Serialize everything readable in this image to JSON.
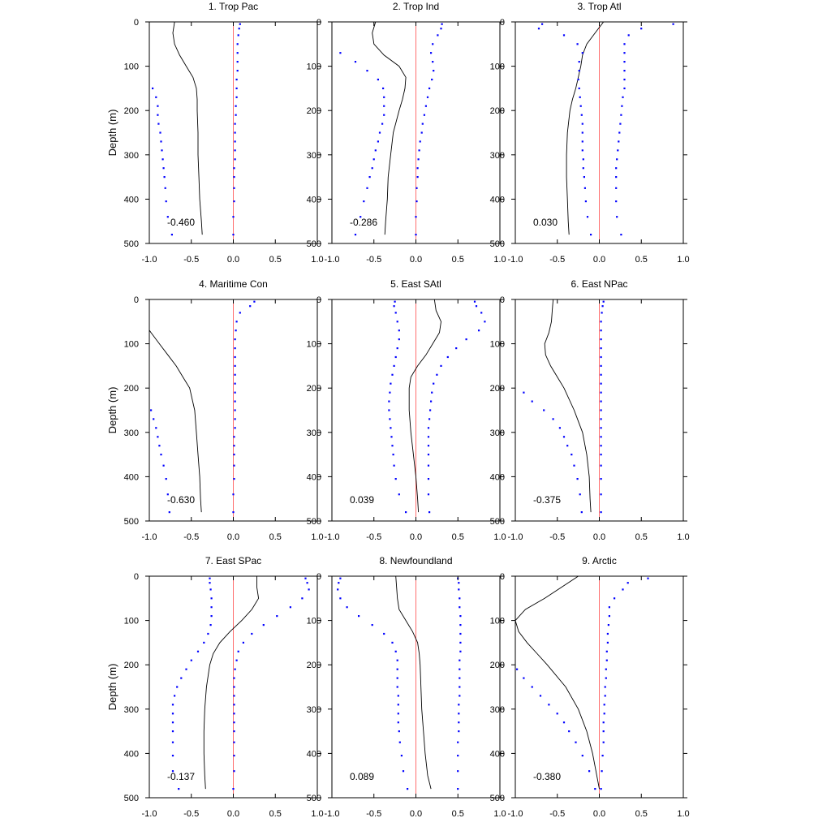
{
  "chart_data": {
    "type": "line",
    "layout": "3x3 panel grid",
    "ylabel": "Depth (m)",
    "xlim": [
      -1.0,
      1.0
    ],
    "ylim": [
      0,
      500
    ],
    "y_inverted": true,
    "xticks": [
      "-1.0",
      "-0.5",
      "0.0",
      "0.5",
      "1.0"
    ],
    "yticks": [
      "0",
      "100",
      "200",
      "300",
      "400",
      "500"
    ],
    "colors": {
      "line": "#000000",
      "zero_line": "#ff6e6e",
      "dots": "#0000ff"
    },
    "depths_line": [
      0,
      25,
      50,
      75,
      100,
      125,
      150,
      175,
      200,
      250,
      300,
      350,
      400,
      450,
      480
    ],
    "depths_dots": [
      5,
      15,
      30,
      50,
      70,
      90,
      110,
      130,
      150,
      170,
      190,
      210,
      230,
      250,
      270,
      290,
      310,
      330,
      350,
      375,
      405,
      440,
      480
    ],
    "panels": [
      {
        "title": "1. Trop Pac",
        "stat": "-0.460",
        "line": [
          -0.7,
          -0.72,
          -0.7,
          -0.64,
          -0.56,
          -0.48,
          -0.44,
          -0.43,
          -0.43,
          -0.42,
          -0.42,
          -0.41,
          -0.4,
          -0.38,
          -0.37
        ],
        "dots_lower": [
          -1.1,
          -1.1,
          -1.1,
          -1.1,
          -1.1,
          -1.1,
          -1.1,
          -1.02,
          -0.96,
          -0.92,
          -0.9,
          -0.9,
          -0.89,
          -0.87,
          -0.86,
          -0.85,
          -0.84,
          -0.83,
          -0.82,
          -0.81,
          -0.8,
          -0.78,
          -0.73
        ],
        "dots_upper": [
          0.08,
          0.07,
          0.06,
          0.05,
          0.05,
          0.05,
          0.05,
          0.04,
          0.04,
          0.04,
          0.03,
          0.03,
          0.02,
          0.02,
          0.02,
          0.02,
          0.02,
          0.01,
          0.01,
          0.01,
          0.01,
          0.0,
          0.0
        ]
      },
      {
        "title": "2. Trop Ind",
        "stat": "-0.286",
        "line": [
          -0.48,
          -0.52,
          -0.5,
          -0.38,
          -0.2,
          -0.12,
          -0.13,
          -0.16,
          -0.2,
          -0.27,
          -0.3,
          -0.33,
          -0.34,
          -0.36,
          -0.37
        ],
        "dots_lower": [
          -1.1,
          -1.1,
          -1.1,
          -1.1,
          -0.9,
          -0.72,
          -0.58,
          -0.45,
          -0.39,
          -0.38,
          -0.38,
          -0.38,
          -0.4,
          -0.43,
          -0.45,
          -0.48,
          -0.5,
          -0.52,
          -0.55,
          -0.58,
          -0.62,
          -0.66,
          -0.72
        ],
        "dots_upper": [
          0.31,
          0.3,
          0.26,
          0.2,
          0.18,
          0.2,
          0.21,
          0.19,
          0.16,
          0.14,
          0.12,
          0.1,
          0.08,
          0.07,
          0.05,
          0.04,
          0.03,
          0.02,
          0.02,
          0.01,
          0.01,
          0.0,
          0.0
        ]
      },
      {
        "title": "3. Trop Atl",
        "stat": "0.030",
        "line": [
          0.05,
          -0.05,
          -0.15,
          -0.2,
          -0.22,
          -0.25,
          -0.28,
          -0.32,
          -0.35,
          -0.38,
          -0.39,
          -0.39,
          -0.38,
          -0.37,
          -0.36
        ],
        "dots_lower": [
          -0.68,
          -0.72,
          -0.42,
          -0.26,
          -0.2,
          -0.24,
          -0.24,
          -0.25,
          -0.24,
          -0.23,
          -0.22,
          -0.21,
          -0.2,
          -0.2,
          -0.2,
          -0.2,
          -0.19,
          -0.19,
          -0.18,
          -0.17,
          -0.16,
          -0.14,
          -0.1
        ],
        "dots_upper": [
          0.88,
          0.5,
          0.35,
          0.3,
          0.3,
          0.3,
          0.3,
          0.3,
          0.3,
          0.28,
          0.27,
          0.26,
          0.25,
          0.24,
          0.23,
          0.22,
          0.21,
          0.2,
          0.2,
          0.2,
          0.2,
          0.21,
          0.26
        ]
      },
      {
        "title": "4. Maritime Con",
        "stat": "-0.630",
        "line": [
          -1.1,
          -1.1,
          -1.07,
          -0.98,
          -0.88,
          -0.78,
          -0.68,
          -0.6,
          -0.52,
          -0.46,
          -0.44,
          -0.42,
          -0.4,
          -0.39,
          -0.38
        ],
        "dots_lower": [
          -1.1,
          -1.1,
          -1.1,
          -1.1,
          -1.1,
          -1.1,
          -1.1,
          -1.1,
          -1.1,
          -1.1,
          -1.1,
          -1.1,
          -1.1,
          -0.98,
          -0.95,
          -0.92,
          -0.9,
          -0.88,
          -0.86,
          -0.83,
          -0.8,
          -0.78,
          -0.76
        ],
        "dots_upper": [
          0.25,
          0.2,
          0.08,
          0.04,
          0.03,
          0.02,
          0.02,
          0.02,
          0.02,
          0.02,
          0.02,
          0.02,
          0.02,
          0.02,
          0.02,
          0.02,
          0.01,
          0.01,
          0.01,
          0.01,
          0.01,
          0.0,
          0.0
        ]
      },
      {
        "title": "5. East SAtl",
        "stat": "0.039",
        "line": [
          0.22,
          0.24,
          0.3,
          0.28,
          0.2,
          0.12,
          0.02,
          -0.06,
          -0.08,
          -0.08,
          -0.06,
          -0.03,
          0.0,
          0.02,
          0.03
        ],
        "dots_lower": [
          -0.25,
          -0.26,
          -0.24,
          -0.22,
          -0.2,
          -0.2,
          -0.22,
          -0.24,
          -0.26,
          -0.28,
          -0.3,
          -0.31,
          -0.32,
          -0.32,
          -0.31,
          -0.3,
          -0.29,
          -0.28,
          -0.27,
          -0.26,
          -0.24,
          -0.2,
          -0.12
        ],
        "dots_upper": [
          0.7,
          0.72,
          0.78,
          0.82,
          0.75,
          0.6,
          0.48,
          0.38,
          0.3,
          0.25,
          0.21,
          0.19,
          0.18,
          0.17,
          0.16,
          0.15,
          0.15,
          0.15,
          0.15,
          0.15,
          0.15,
          0.15,
          0.16
        ]
      },
      {
        "title": "6. East NPac",
        "stat": "-0.375",
        "line": [
          -0.55,
          -0.56,
          -0.57,
          -0.6,
          -0.65,
          -0.64,
          -0.58,
          -0.5,
          -0.42,
          -0.3,
          -0.2,
          -0.15,
          -0.12,
          -0.11,
          -0.1
        ],
        "dots_lower": [
          -1.1,
          -1.1,
          -1.1,
          -1.1,
          -1.1,
          -1.1,
          -1.1,
          -1.1,
          -1.1,
          -1.1,
          -1.1,
          -0.9,
          -0.8,
          -0.66,
          -0.55,
          -0.47,
          -0.42,
          -0.38,
          -0.33,
          -0.3,
          -0.26,
          -0.23,
          -0.21
        ],
        "dots_upper": [
          0.05,
          0.04,
          0.03,
          0.02,
          0.02,
          0.02,
          0.02,
          0.02,
          0.02,
          0.02,
          0.02,
          0.02,
          0.02,
          0.02,
          0.02,
          0.02,
          0.02,
          0.02,
          0.02,
          0.02,
          0.02,
          0.02,
          0.02
        ]
      },
      {
        "title": "7. East SPac",
        "stat": "-0.137",
        "line": [
          0.28,
          0.28,
          0.3,
          0.22,
          0.1,
          -0.04,
          -0.16,
          -0.24,
          -0.28,
          -0.32,
          -0.34,
          -0.35,
          -0.35,
          -0.34,
          -0.33
        ],
        "dots_lower": [
          -0.28,
          -0.28,
          -0.27,
          -0.26,
          -0.26,
          -0.26,
          -0.27,
          -0.3,
          -0.35,
          -0.42,
          -0.5,
          -0.56,
          -0.62,
          -0.67,
          -0.7,
          -0.72,
          -0.72,
          -0.72,
          -0.72,
          -0.72,
          -0.72,
          -0.72,
          -0.65
        ],
        "dots_upper": [
          0.86,
          0.88,
          0.9,
          0.82,
          0.68,
          0.52,
          0.36,
          0.22,
          0.12,
          0.06,
          0.04,
          0.02,
          0.01,
          0.01,
          0.01,
          0.01,
          0.01,
          0.01,
          0.01,
          0.01,
          0.01,
          0.01,
          0.0
        ]
      },
      {
        "title": "8. Newfoundland",
        "stat": "0.089",
        "line": [
          -0.24,
          -0.23,
          -0.22,
          -0.2,
          -0.12,
          -0.04,
          0.02,
          0.04,
          0.05,
          0.06,
          0.07,
          0.09,
          0.11,
          0.14,
          0.18
        ],
        "dots_lower": [
          -0.9,
          -0.92,
          -0.93,
          -0.9,
          -0.82,
          -0.68,
          -0.52,
          -0.38,
          -0.28,
          -0.24,
          -0.22,
          -0.22,
          -0.22,
          -0.22,
          -0.21,
          -0.21,
          -0.21,
          -0.21,
          -0.2,
          -0.19,
          -0.17,
          -0.15,
          -0.1
        ],
        "dots_upper": [
          0.5,
          0.51,
          0.51,
          0.52,
          0.52,
          0.53,
          0.53,
          0.53,
          0.53,
          0.53,
          0.52,
          0.52,
          0.52,
          0.52,
          0.52,
          0.51,
          0.51,
          0.51,
          0.51,
          0.5,
          0.5,
          0.5,
          0.5
        ]
      },
      {
        "title": "9. Arctic",
        "stat": "-0.380",
        "line": [
          -0.25,
          -0.45,
          -0.65,
          -0.88,
          -1.0,
          -0.96,
          -0.86,
          -0.74,
          -0.62,
          -0.4,
          -0.25,
          -0.15,
          -0.08,
          -0.03,
          0.0
        ],
        "dots_lower": [
          -1.1,
          -1.1,
          -1.1,
          -1.1,
          -1.1,
          -1.1,
          -1.1,
          -1.1,
          -1.1,
          -1.1,
          -1.1,
          -0.98,
          -0.9,
          -0.8,
          -0.7,
          -0.6,
          -0.5,
          -0.42,
          -0.36,
          -0.28,
          -0.2,
          -0.12,
          -0.05
        ],
        "dots_upper": [
          0.58,
          0.34,
          0.28,
          0.18,
          0.12,
          0.12,
          0.11,
          0.1,
          0.1,
          0.09,
          0.09,
          0.08,
          0.08,
          0.07,
          0.07,
          0.06,
          0.06,
          0.05,
          0.05,
          0.05,
          0.04,
          0.03,
          0.02
        ]
      }
    ]
  }
}
